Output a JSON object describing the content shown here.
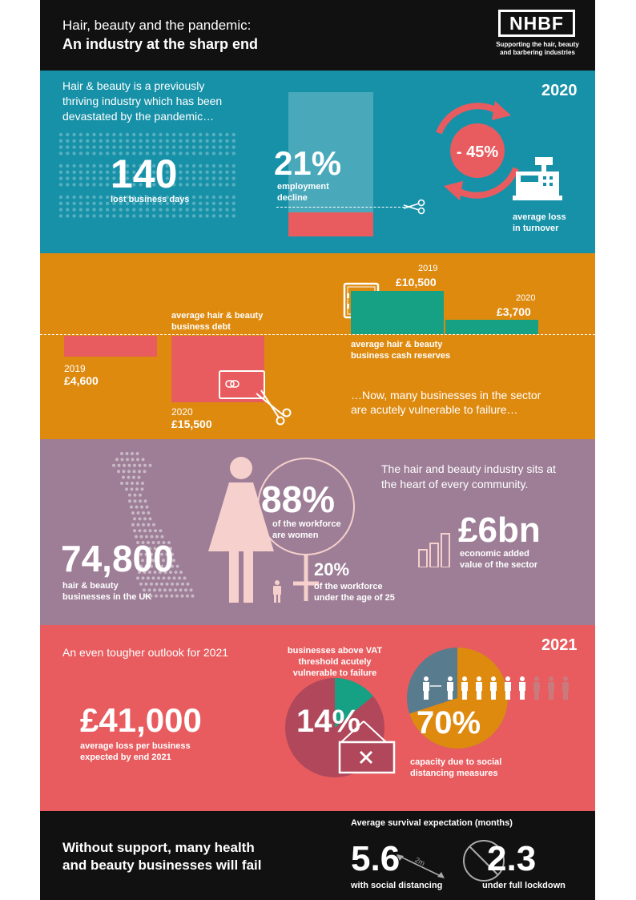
{
  "header": {
    "title_line1": "Hair, beauty and the pandemic:",
    "title_line2": "An industry at the sharp end",
    "logo_text": "NHBF",
    "logo_tagline_line1": "Supporting the hair, beauty",
    "logo_tagline_line2": "and barbering industries"
  },
  "section_2020": {
    "year": "2020",
    "intro_line1": "Hair & beauty is a previously",
    "intro_line2": "thriving industry which has been",
    "intro_line3": "devastated by the pandemic…",
    "lost_days_value": "140",
    "lost_days_label": "lost business days",
    "employment_value": "21%",
    "employment_label_line1": "employment",
    "employment_label_line2": "decline",
    "turnover_value": "- 45%",
    "turnover_label_line1": "average loss",
    "turnover_label_line2": "in turnover"
  },
  "section_finance": {
    "debt_label_line1": "average hair & beauty",
    "debt_label_line2": "business debt",
    "debt_2019_year": "2019",
    "debt_2019_value": "£4,600",
    "debt_2020_year": "2020",
    "debt_2020_value": "£15,500",
    "cash_label_line1": "average hair & beauty",
    "cash_label_line2": "business cash reserves",
    "cash_2019_year": "2019",
    "cash_2019_value": "£10,500",
    "cash_2020_year": "2020",
    "cash_2020_value": "£3,700",
    "vulnerable_line1": "…Now, many businesses in the sector",
    "vulnerable_line2": "are acutely vulnerable to failure…"
  },
  "section_community": {
    "intro_line1": "The hair and beauty industry sits at",
    "intro_line2": "the heart of every community.",
    "businesses_value": "74,800",
    "businesses_label_line1": "hair & beauty",
    "businesses_label_line2": "businesses in the UK",
    "women_value": "88%",
    "women_label_line1": "of the workforce",
    "women_label_line2": "are women",
    "young_value": "20%",
    "young_label_line1": "of the workforce",
    "young_label_line2": "under the age of 25",
    "gva_value": "£6bn",
    "gva_label_line1": "economic added",
    "gva_label_line2": "value of the sector"
  },
  "section_2021": {
    "year": "2021",
    "intro": "An even tougher outlook for 2021",
    "loss_value": "£41,000",
    "loss_label_line1": "average loss per business",
    "loss_label_line2": "expected by end 2021",
    "vat_label_line1": "businesses above VAT",
    "vat_label_line2": "threshold acutely",
    "vat_label_line3": "vulnerable to failure",
    "vat_value": "14%",
    "vat_share": 0.14,
    "capacity_value": "70%",
    "capacity_share": 0.7,
    "capacity_label_line1": "capacity due to social",
    "capacity_label_line2": "distancing measures",
    "people_total": 10,
    "people_active": 7
  },
  "footer": {
    "headline_line1": "Without support, many health",
    "headline_line2": "and beauty businesses will fail",
    "survival_title": "Average survival expectation (months)",
    "distancing_value": "5.6",
    "distancing_label": "with social distancing",
    "distance_marker": "2m",
    "lockdown_value": "2.3",
    "lockdown_label": "under full lockdown"
  },
  "colors": {
    "header_bg": "#111111",
    "teal": "#1791a8",
    "orange": "#de8a0f",
    "purple": "#9d7e96",
    "coral": "#e85c5f",
    "green": "#16a185",
    "grey_blue": "#587b8e",
    "plum": "#b1475a",
    "pink": "#f6d0cc"
  }
}
